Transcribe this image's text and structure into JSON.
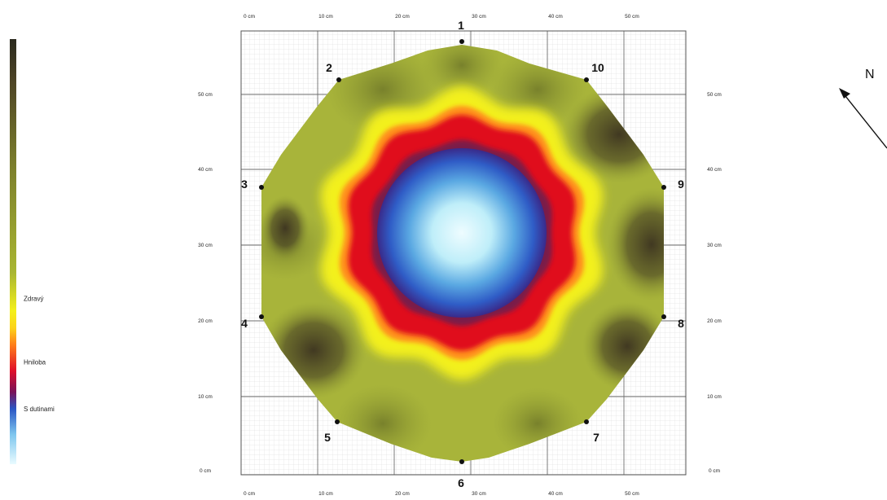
{
  "legend": {
    "labels": [
      {
        "id": "healthy",
        "text": "Zdravý",
        "frac": 0.61
      },
      {
        "id": "rot",
        "text": "Hniloba",
        "frac": 0.76
      },
      {
        "id": "cavities",
        "text": "S dutinami",
        "frac": 0.87
      }
    ],
    "gradient": [
      {
        "frac": 0.0,
        "color": "#2b2a1f"
      },
      {
        "frac": 0.1,
        "color": "#4e4526"
      },
      {
        "frac": 0.3,
        "color": "#7c7f2c"
      },
      {
        "frac": 0.55,
        "color": "#a9b632"
      },
      {
        "frac": 0.64,
        "color": "#f4f01a"
      },
      {
        "frac": 0.68,
        "color": "#fcd21a"
      },
      {
        "frac": 0.72,
        "color": "#ff7d1a"
      },
      {
        "frac": 0.78,
        "color": "#e0102a"
      },
      {
        "frac": 0.83,
        "color": "#7a1258"
      },
      {
        "frac": 0.87,
        "color": "#2a56c4"
      },
      {
        "frac": 0.93,
        "color": "#7ec6ee"
      },
      {
        "frac": 1.0,
        "color": "#e9fbff"
      }
    ]
  },
  "plot": {
    "top_ticks": [
      "0 cm",
      "10 cm",
      "20 cm",
      "30 cm",
      "40 cm",
      "50 cm"
    ],
    "bottom_ticks": [
      "0 cm",
      "10 cm",
      "20 cm",
      "30 cm",
      "40 cm",
      "50 cm"
    ],
    "left_ticks": [
      "50 cm",
      "40 cm",
      "30 cm",
      "20 cm",
      "10 cm",
      "0 cm"
    ],
    "right_ticks": [
      "50 cm",
      "40 cm",
      "30 cm",
      "20 cm",
      "10 cm",
      "0 cm"
    ],
    "sensors": [
      "1",
      "2",
      "3",
      "4",
      "5",
      "6",
      "7",
      "8",
      "9",
      "10"
    ]
  },
  "colors": {
    "cyan_center": "#e6fbff",
    "blue": "#2f5fc8",
    "dark_ring": "#7a1c4a",
    "red": "#e0101e",
    "orange": "#ff8a1c",
    "yellow": "#f6f41a",
    "green": "#a8b83a",
    "dark_brown": "#3c3420"
  },
  "compass": {
    "label": "N"
  }
}
